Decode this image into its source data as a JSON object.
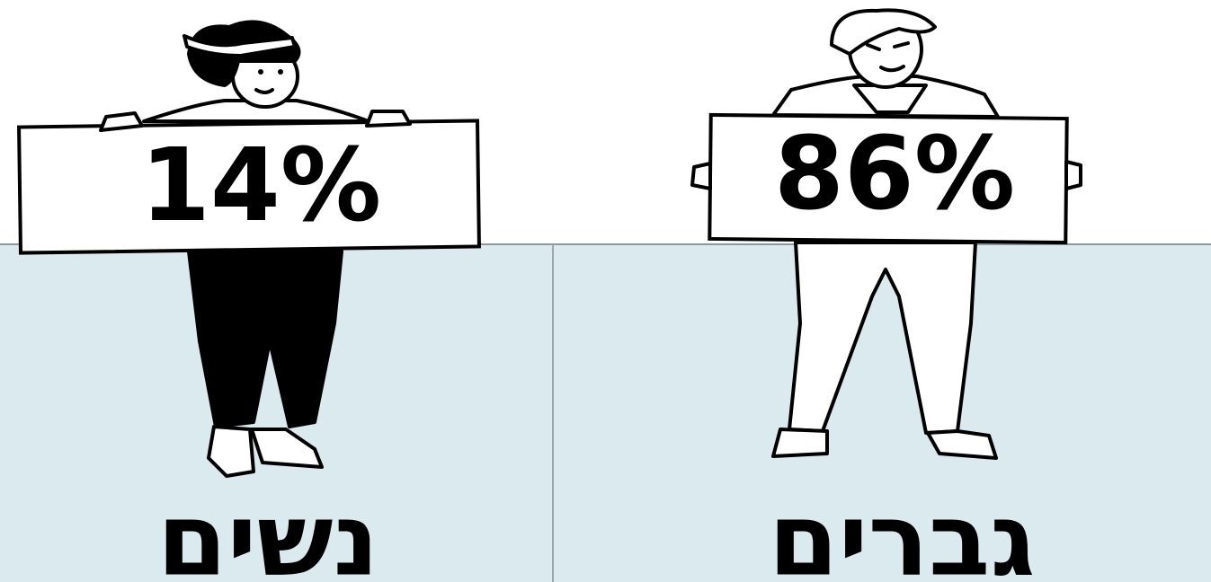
{
  "panels": [
    {
      "sign": "14%",
      "label": "נשים"
    },
    {
      "sign": "86%",
      "label": "גברים"
    }
  ]
}
